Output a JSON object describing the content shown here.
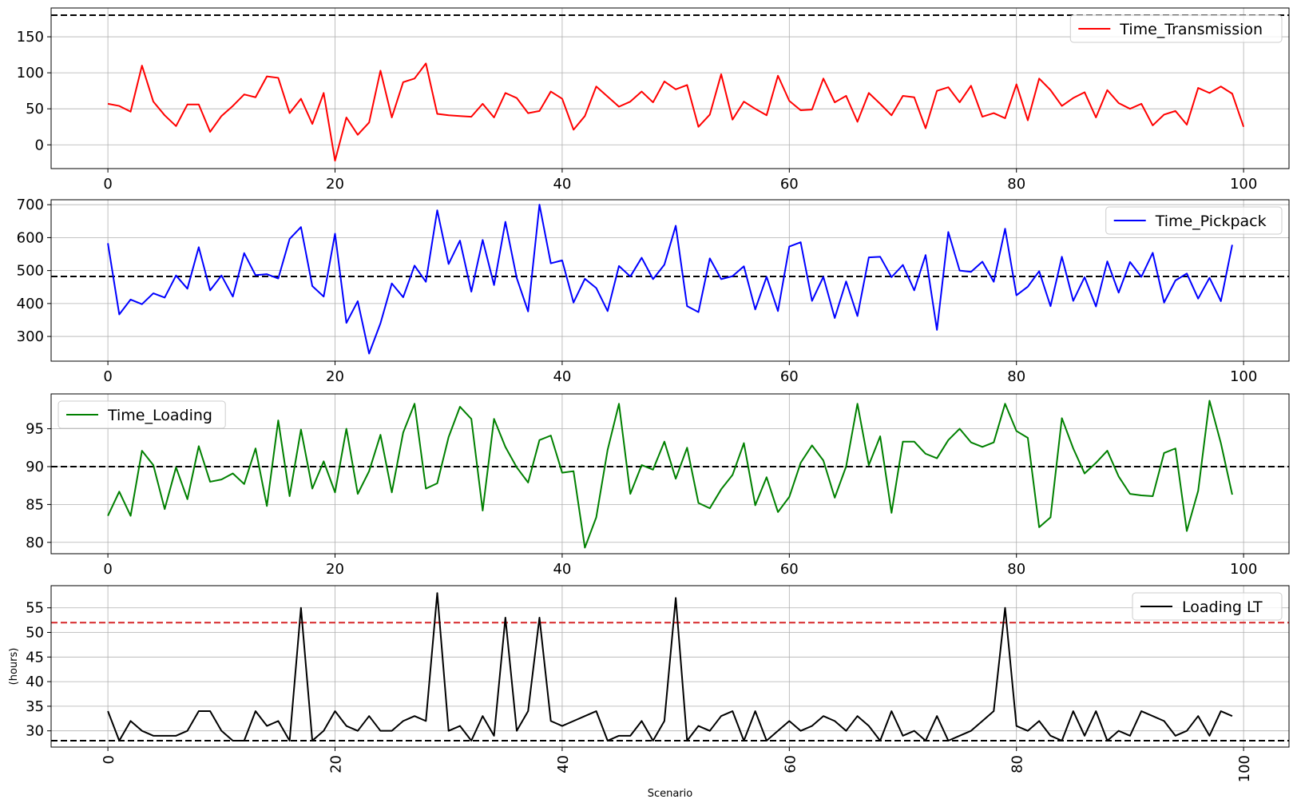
{
  "chart_data": [
    {
      "type": "line",
      "xlim": [
        -5,
        104
      ],
      "ylim": [
        -33,
        190
      ],
      "xticks": [
        0,
        20,
        40,
        60,
        80,
        100
      ],
      "yticks": [
        0,
        50,
        100,
        150
      ],
      "grid": true,
      "legend_position": "top-right",
      "xlabel": "",
      "ylabel": "",
      "series": [
        {
          "name": "Time_Transmission",
          "color": "#ff0000",
          "x_start": 0,
          "values": [
            57,
            54,
            46,
            110,
            60,
            41,
            26,
            56,
            56,
            18,
            40,
            54,
            70,
            66,
            95,
            93,
            44,
            64,
            29,
            72,
            -22,
            38,
            14,
            31,
            103,
            38,
            87,
            92,
            113,
            43,
            41,
            40,
            39,
            57,
            38,
            72,
            65,
            44,
            47,
            74,
            64,
            21,
            40,
            81,
            67,
            53,
            60,
            74,
            59,
            88,
            77,
            83,
            25,
            42,
            98,
            35,
            60,
            50,
            41,
            96,
            61,
            48,
            49,
            92,
            59,
            68,
            32,
            72,
            57,
            41,
            68,
            66,
            23,
            75,
            80,
            59,
            82,
            39,
            44,
            37,
            84,
            34,
            92,
            76,
            54,
            65,
            73,
            38,
            76,
            58,
            50,
            57,
            27,
            42,
            47,
            28,
            79,
            72,
            81,
            71,
            25
          ]
        }
      ],
      "reference_lines": [
        {
          "y": 180,
          "color": "#000000",
          "style": "dashed"
        }
      ]
    },
    {
      "type": "line",
      "xlim": [
        -5,
        104
      ],
      "ylim": [
        225,
        715
      ],
      "xticks": [
        0,
        20,
        40,
        60,
        80,
        100
      ],
      "yticks": [
        300,
        400,
        500,
        600,
        700
      ],
      "grid": true,
      "legend_position": "top-right",
      "xlabel": "",
      "ylabel": "",
      "series": [
        {
          "name": "Time_Pickpack",
          "color": "#0000ff",
          "x_start": 0,
          "values": [
            583,
            367,
            412,
            398,
            431,
            418,
            485,
            445,
            571,
            440,
            485,
            421,
            553,
            486,
            489,
            476,
            596,
            632,
            453,
            421,
            612,
            341,
            407,
            248,
            340,
            461,
            419,
            515,
            466,
            683,
            520,
            591,
            436,
            593,
            456,
            648,
            477,
            376,
            700,
            522,
            531,
            403,
            475,
            447,
            377,
            514,
            482,
            539,
            474,
            518,
            636,
            392,
            374,
            537,
            474,
            483,
            513,
            382,
            481,
            377,
            573,
            586,
            408,
            481,
            356,
            467,
            362,
            540,
            542,
            480,
            517,
            440,
            547,
            320,
            617,
            500,
            496,
            527,
            466,
            627,
            425,
            451,
            498,
            392,
            542,
            408,
            480,
            391,
            528,
            433,
            526,
            481,
            554,
            403,
            470,
            491,
            415,
            478,
            407,
            578
          ]
        }
      ],
      "reference_lines": [
        {
          "y": 482,
          "color": "#000000",
          "style": "dashed"
        }
      ]
    },
    {
      "type": "line",
      "xlim": [
        -5,
        104
      ],
      "ylim": [
        78.5,
        99.6
      ],
      "xticks": [
        0,
        20,
        40,
        60,
        80,
        100
      ],
      "yticks": [
        80,
        85,
        90,
        95
      ],
      "grid": true,
      "legend_position": "top-left",
      "xlabel": "",
      "ylabel": "",
      "series": [
        {
          "name": "Time_Loading",
          "color": "#008000",
          "x_start": 0,
          "values": [
            83.5,
            86.7,
            83.5,
            92.1,
            90.2,
            84.4,
            89.9,
            85.7,
            92.7,
            88.0,
            88.3,
            89.1,
            87.7,
            92.4,
            84.8,
            96.1,
            86.1,
            94.9,
            87.1,
            90.7,
            86.6,
            95.0,
            86.4,
            89.4,
            94.2,
            86.6,
            94.5,
            98.3,
            87.1,
            87.8,
            93.9,
            97.9,
            96.3,
            84.2,
            96.3,
            92.6,
            89.9,
            87.9,
            93.5,
            94.1,
            89.2,
            89.4,
            79.3,
            83.3,
            92.2,
            98.3,
            86.4,
            90.2,
            89.6,
            93.3,
            88.4,
            92.5,
            85.2,
            84.5,
            87.0,
            88.9,
            93.1,
            84.9,
            88.6,
            84.0,
            86.0,
            90.5,
            92.8,
            90.8,
            85.9,
            90.0,
            98.3,
            90.2,
            94.0,
            83.9,
            93.3,
            93.3,
            91.7,
            91.1,
            93.5,
            95.0,
            93.2,
            92.6,
            93.2,
            98.3,
            94.7,
            93.8,
            82.0,
            83.3,
            96.4,
            92.4,
            89.1,
            90.5,
            92.1,
            88.7,
            86.4,
            86.2,
            86.1,
            91.8,
            92.4,
            81.5,
            86.8,
            98.7,
            93.1,
            86.3
          ]
        }
      ],
      "reference_lines": [
        {
          "y": 90,
          "color": "#000000",
          "style": "dashed"
        }
      ]
    },
    {
      "type": "line",
      "xlim": [
        -5,
        104
      ],
      "ylim": [
        26.7,
        59.5
      ],
      "xticks": [
        0,
        20,
        40,
        60,
        80,
        100
      ],
      "yticks": [
        30,
        35,
        40,
        45,
        50,
        55
      ],
      "grid": true,
      "legend_position": "top-right",
      "xlabel": "Scenario",
      "ylabel": "(hours)",
      "series": [
        {
          "name": "Loading LT",
          "color": "#000000",
          "x_start": 0,
          "values": [
            34,
            28,
            32,
            30,
            29,
            29,
            29,
            30,
            34,
            34,
            30,
            28,
            28,
            34,
            31,
            32,
            28,
            55,
            28,
            30,
            34,
            31,
            30,
            33,
            30,
            30,
            32,
            33,
            32,
            58,
            30,
            31,
            28,
            33,
            29,
            53,
            30,
            34,
            53,
            32,
            31,
            32,
            33,
            34,
            28,
            29,
            29,
            32,
            28,
            32,
            57,
            28,
            31,
            30,
            33,
            34,
            28,
            34,
            28,
            30,
            32,
            30,
            31,
            33,
            32,
            30,
            33,
            31,
            28,
            34,
            29,
            30,
            28,
            33,
            28,
            29,
            30,
            32,
            34,
            55,
            31,
            30,
            32,
            29,
            28,
            34,
            29,
            34,
            28,
            30,
            29,
            34,
            33,
            32,
            29,
            30,
            33,
            29,
            34,
            33
          ]
        }
      ],
      "reference_lines": [
        {
          "y": 52,
          "color": "#d62728",
          "style": "dashed"
        },
        {
          "y": 28,
          "color": "#000000",
          "style": "dashed"
        }
      ]
    }
  ]
}
